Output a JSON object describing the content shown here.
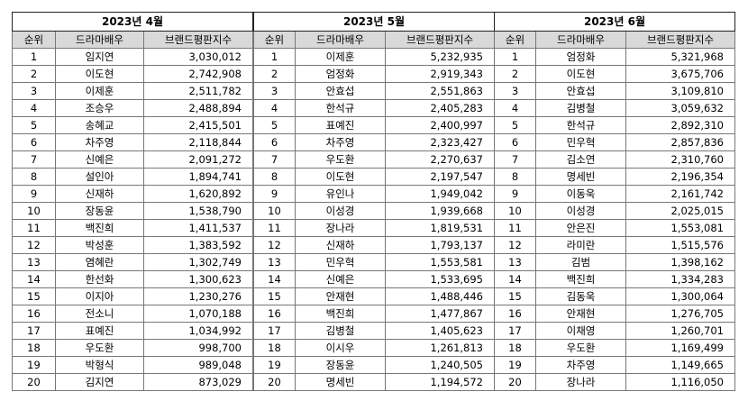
{
  "headers": {
    "rank": "순위",
    "actor": "드라마배우",
    "index": "브랜드평판지수"
  },
  "tables": [
    {
      "title": "2023년 4월",
      "rows": [
        [
          "1",
          "임지연",
          "3,030,012"
        ],
        [
          "2",
          "이도현",
          "2,742,908"
        ],
        [
          "3",
          "이제훈",
          "2,511,782"
        ],
        [
          "4",
          "조승우",
          "2,488,894"
        ],
        [
          "5",
          "송혜교",
          "2,415,501"
        ],
        [
          "6",
          "차주영",
          "2,118,844"
        ],
        [
          "7",
          "신예은",
          "2,091,272"
        ],
        [
          "8",
          "설인아",
          "1,894,741"
        ],
        [
          "9",
          "신재하",
          "1,620,892"
        ],
        [
          "10",
          "장동윤",
          "1,538,790"
        ],
        [
          "11",
          "백진희",
          "1,411,537"
        ],
        [
          "12",
          "박성훈",
          "1,383,592"
        ],
        [
          "13",
          "염혜란",
          "1,302,749"
        ],
        [
          "14",
          "한선화",
          "1,300,623"
        ],
        [
          "15",
          "이지아",
          "1,230,276"
        ],
        [
          "16",
          "전소니",
          "1,070,188"
        ],
        [
          "17",
          "표예진",
          "1,034,992"
        ],
        [
          "18",
          "우도환",
          "998,700"
        ],
        [
          "19",
          "박형식",
          "989,048"
        ],
        [
          "20",
          "김지연",
          "873,029"
        ]
      ]
    },
    {
      "title": "2023년 5월",
      "rows": [
        [
          "1",
          "이제훈",
          "5,232,935"
        ],
        [
          "2",
          "엄정화",
          "2,919,343"
        ],
        [
          "3",
          "안효섭",
          "2,551,863"
        ],
        [
          "4",
          "한석규",
          "2,405,283"
        ],
        [
          "5",
          "표예진",
          "2,400,997"
        ],
        [
          "6",
          "차주영",
          "2,323,427"
        ],
        [
          "7",
          "우도환",
          "2,270,637"
        ],
        [
          "8",
          "이도현",
          "2,197,547"
        ],
        [
          "9",
          "유인나",
          "1,949,042"
        ],
        [
          "10",
          "이성경",
          "1,939,668"
        ],
        [
          "11",
          "장나라",
          "1,819,531"
        ],
        [
          "12",
          "신재하",
          "1,793,137"
        ],
        [
          "13",
          "민우혁",
          "1,553,581"
        ],
        [
          "14",
          "신예은",
          "1,533,695"
        ],
        [
          "15",
          "안재현",
          "1,488,446"
        ],
        [
          "16",
          "백진희",
          "1,477,867"
        ],
        [
          "17",
          "김병철",
          "1,405,623"
        ],
        [
          "18",
          "이시우",
          "1,261,813"
        ],
        [
          "19",
          "장동윤",
          "1,240,505"
        ],
        [
          "20",
          "명세빈",
          "1,194,572"
        ]
      ]
    },
    {
      "title": "2023년 6월",
      "rows": [
        [
          "1",
          "엄정화",
          "5,321,968"
        ],
        [
          "2",
          "이도현",
          "3,675,706"
        ],
        [
          "3",
          "안효섭",
          "3,109,810"
        ],
        [
          "4",
          "김병철",
          "3,059,632"
        ],
        [
          "5",
          "한석규",
          "2,892,310"
        ],
        [
          "6",
          "민우혁",
          "2,857,836"
        ],
        [
          "7",
          "김소연",
          "2,310,760"
        ],
        [
          "8",
          "명세빈",
          "2,196,354"
        ],
        [
          "9",
          "이동욱",
          "2,161,742"
        ],
        [
          "10",
          "이성경",
          "2,025,015"
        ],
        [
          "11",
          "안은진",
          "1,553,081"
        ],
        [
          "12",
          "라미란",
          "1,515,576"
        ],
        [
          "13",
          "김범",
          "1,398,162"
        ],
        [
          "14",
          "백진희",
          "1,334,283"
        ],
        [
          "15",
          "김동욱",
          "1,300,064"
        ],
        [
          "16",
          "안재현",
          "1,276,705"
        ],
        [
          "17",
          "이채영",
          "1,260,701"
        ],
        [
          "18",
          "우도환",
          "1,169,499"
        ],
        [
          "19",
          "차주영",
          "1,149,665"
        ],
        [
          "20",
          "장나라",
          "1,116,050"
        ]
      ]
    }
  ]
}
